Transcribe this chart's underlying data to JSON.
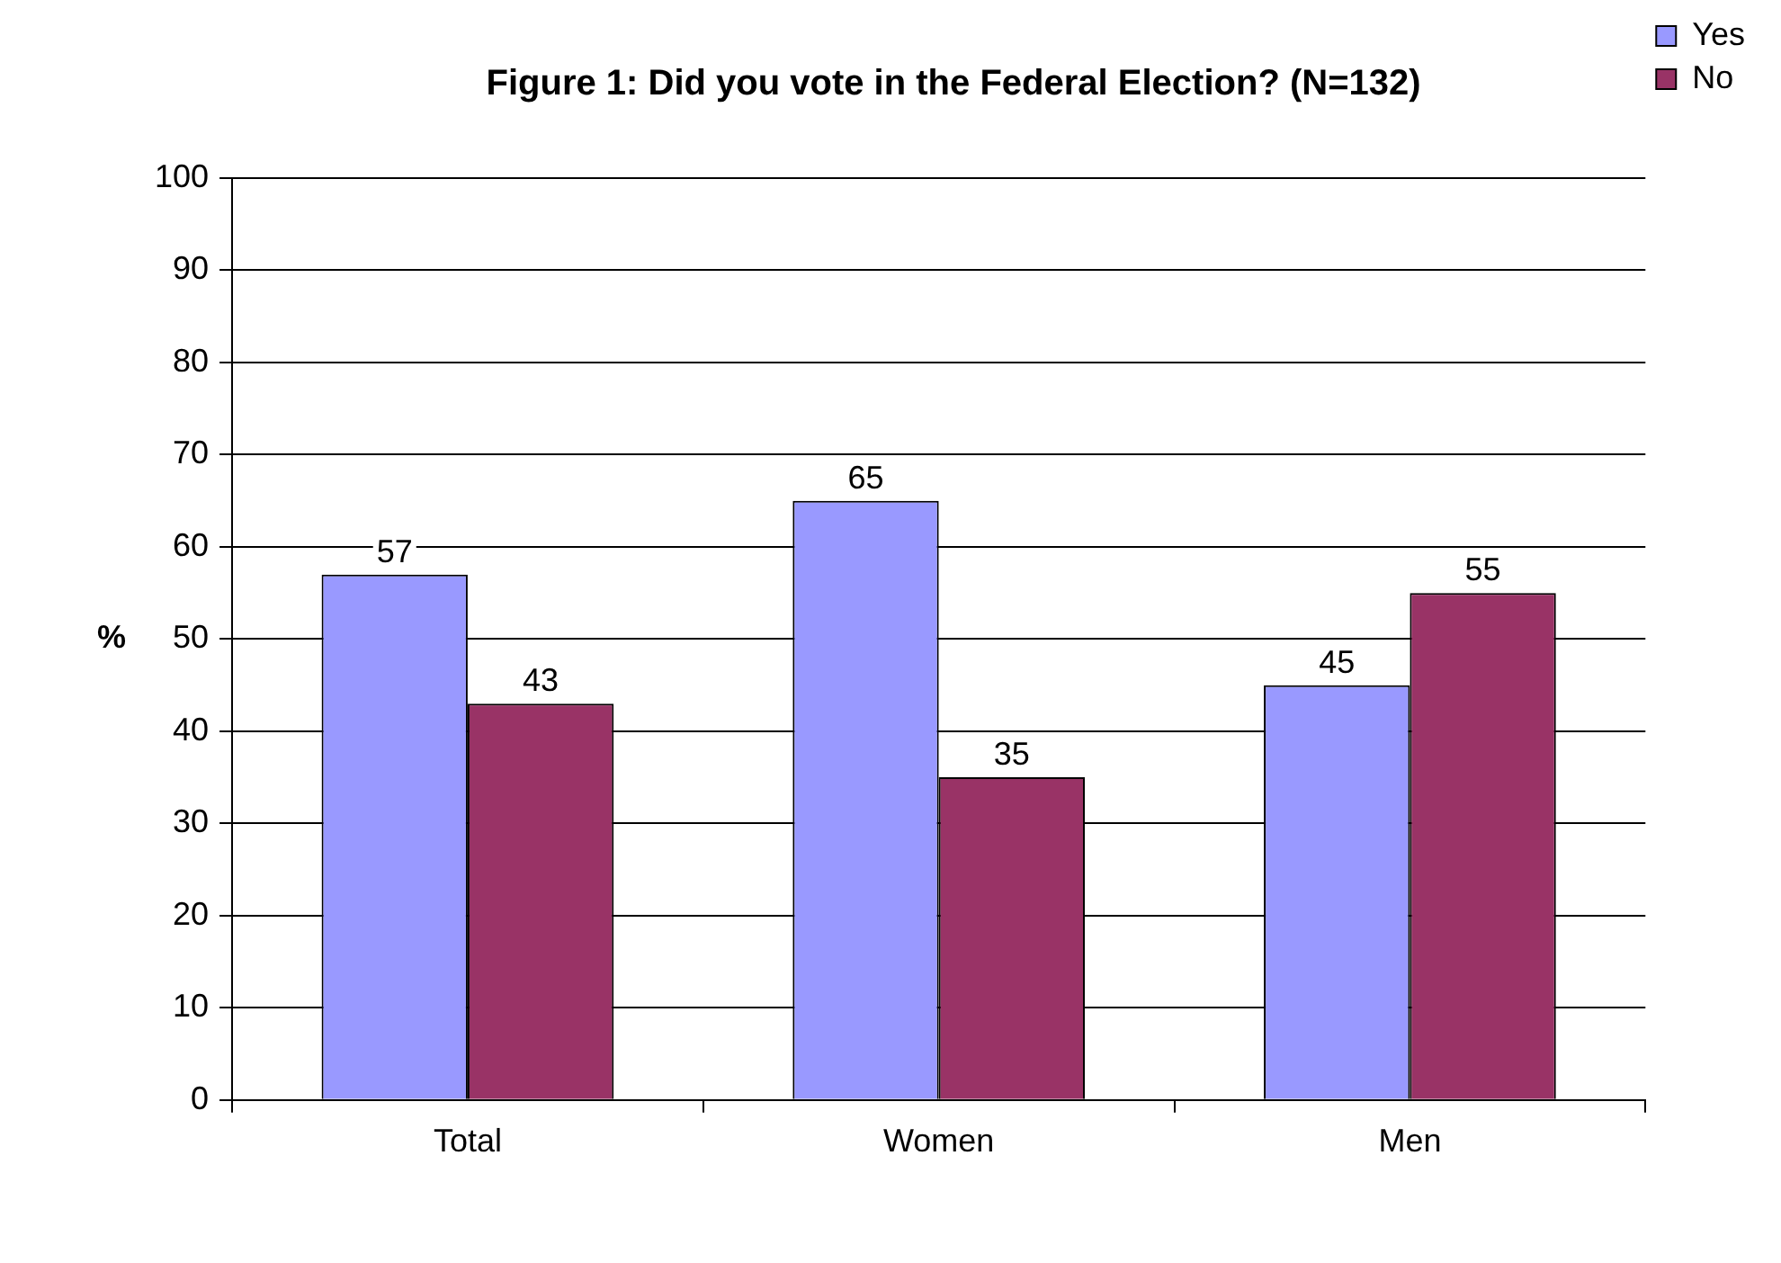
{
  "chart_data": {
    "type": "bar",
    "title": "Figure 1: Did you vote in the Federal Election? (N=132)",
    "ylabel": "%",
    "categories": [
      "Total",
      "Women",
      "Men"
    ],
    "series": [
      {
        "name": "Yes",
        "color": "#9999ff",
        "values": [
          57,
          65,
          45
        ]
      },
      {
        "name": "No",
        "color": "#993366",
        "values": [
          43,
          35,
          55
        ]
      }
    ],
    "ylim": [
      0,
      100
    ],
    "yticks": [
      0,
      10,
      20,
      30,
      40,
      50,
      60,
      70,
      80,
      90,
      100
    ],
    "grid": "y",
    "legend": "right",
    "data_labels": true
  }
}
